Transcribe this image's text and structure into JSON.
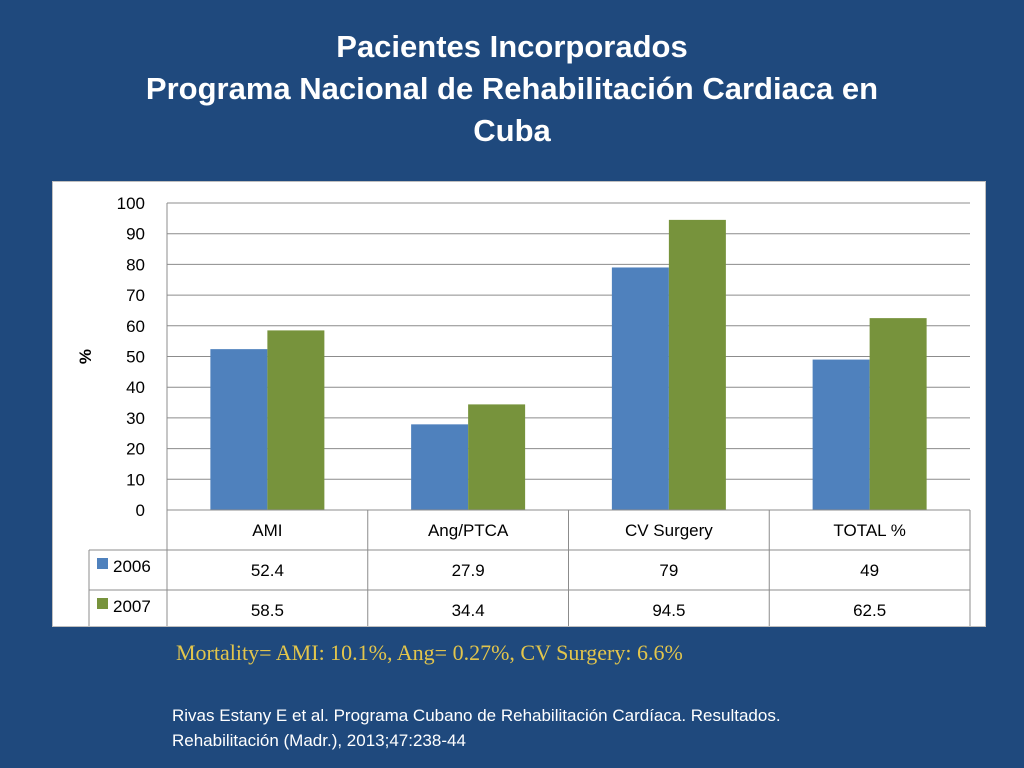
{
  "slide": {
    "title_line1": "Pacientes Incorporados",
    "title_line2": "Programa Nacional de Rehabilitación Cardiaca en",
    "title_line3": "Cuba",
    "mortality_note": "Mortality= AMI: 10.1%, Ang= 0.27%, CV Surgery: 6.6%",
    "citation_line1": "Rivas Estany E et al. Programa Cubano de Rehabilitación Cardíaca. Resultados.",
    "citation_line2": "Rehabilitación (Madr.), 2013;47:238-44"
  },
  "colors": {
    "background": "#1f497d",
    "series_2006": "#4f81bd",
    "series_2007": "#77933c",
    "mortality_text": "#e2c54c"
  },
  "chart_data": {
    "type": "bar",
    "title": "",
    "xlabel": "",
    "ylabel": "%",
    "ylim": [
      0,
      100
    ],
    "yticks": [
      0,
      10,
      20,
      30,
      40,
      50,
      60,
      70,
      80,
      90,
      100
    ],
    "grid": true,
    "categories": [
      "AMI",
      "Ang/PTCA",
      "CV Surgery",
      "TOTAL %"
    ],
    "series": [
      {
        "name": "2006",
        "values": [
          52.4,
          27.9,
          79,
          49
        ],
        "labels": [
          "52.4",
          "27.9",
          "79",
          "49"
        ]
      },
      {
        "name": "2007",
        "values": [
          58.5,
          34.4,
          94.5,
          62.5
        ],
        "labels": [
          "58.5",
          "34.4",
          "94.5",
          "62.5"
        ]
      }
    ],
    "data_table": true
  }
}
